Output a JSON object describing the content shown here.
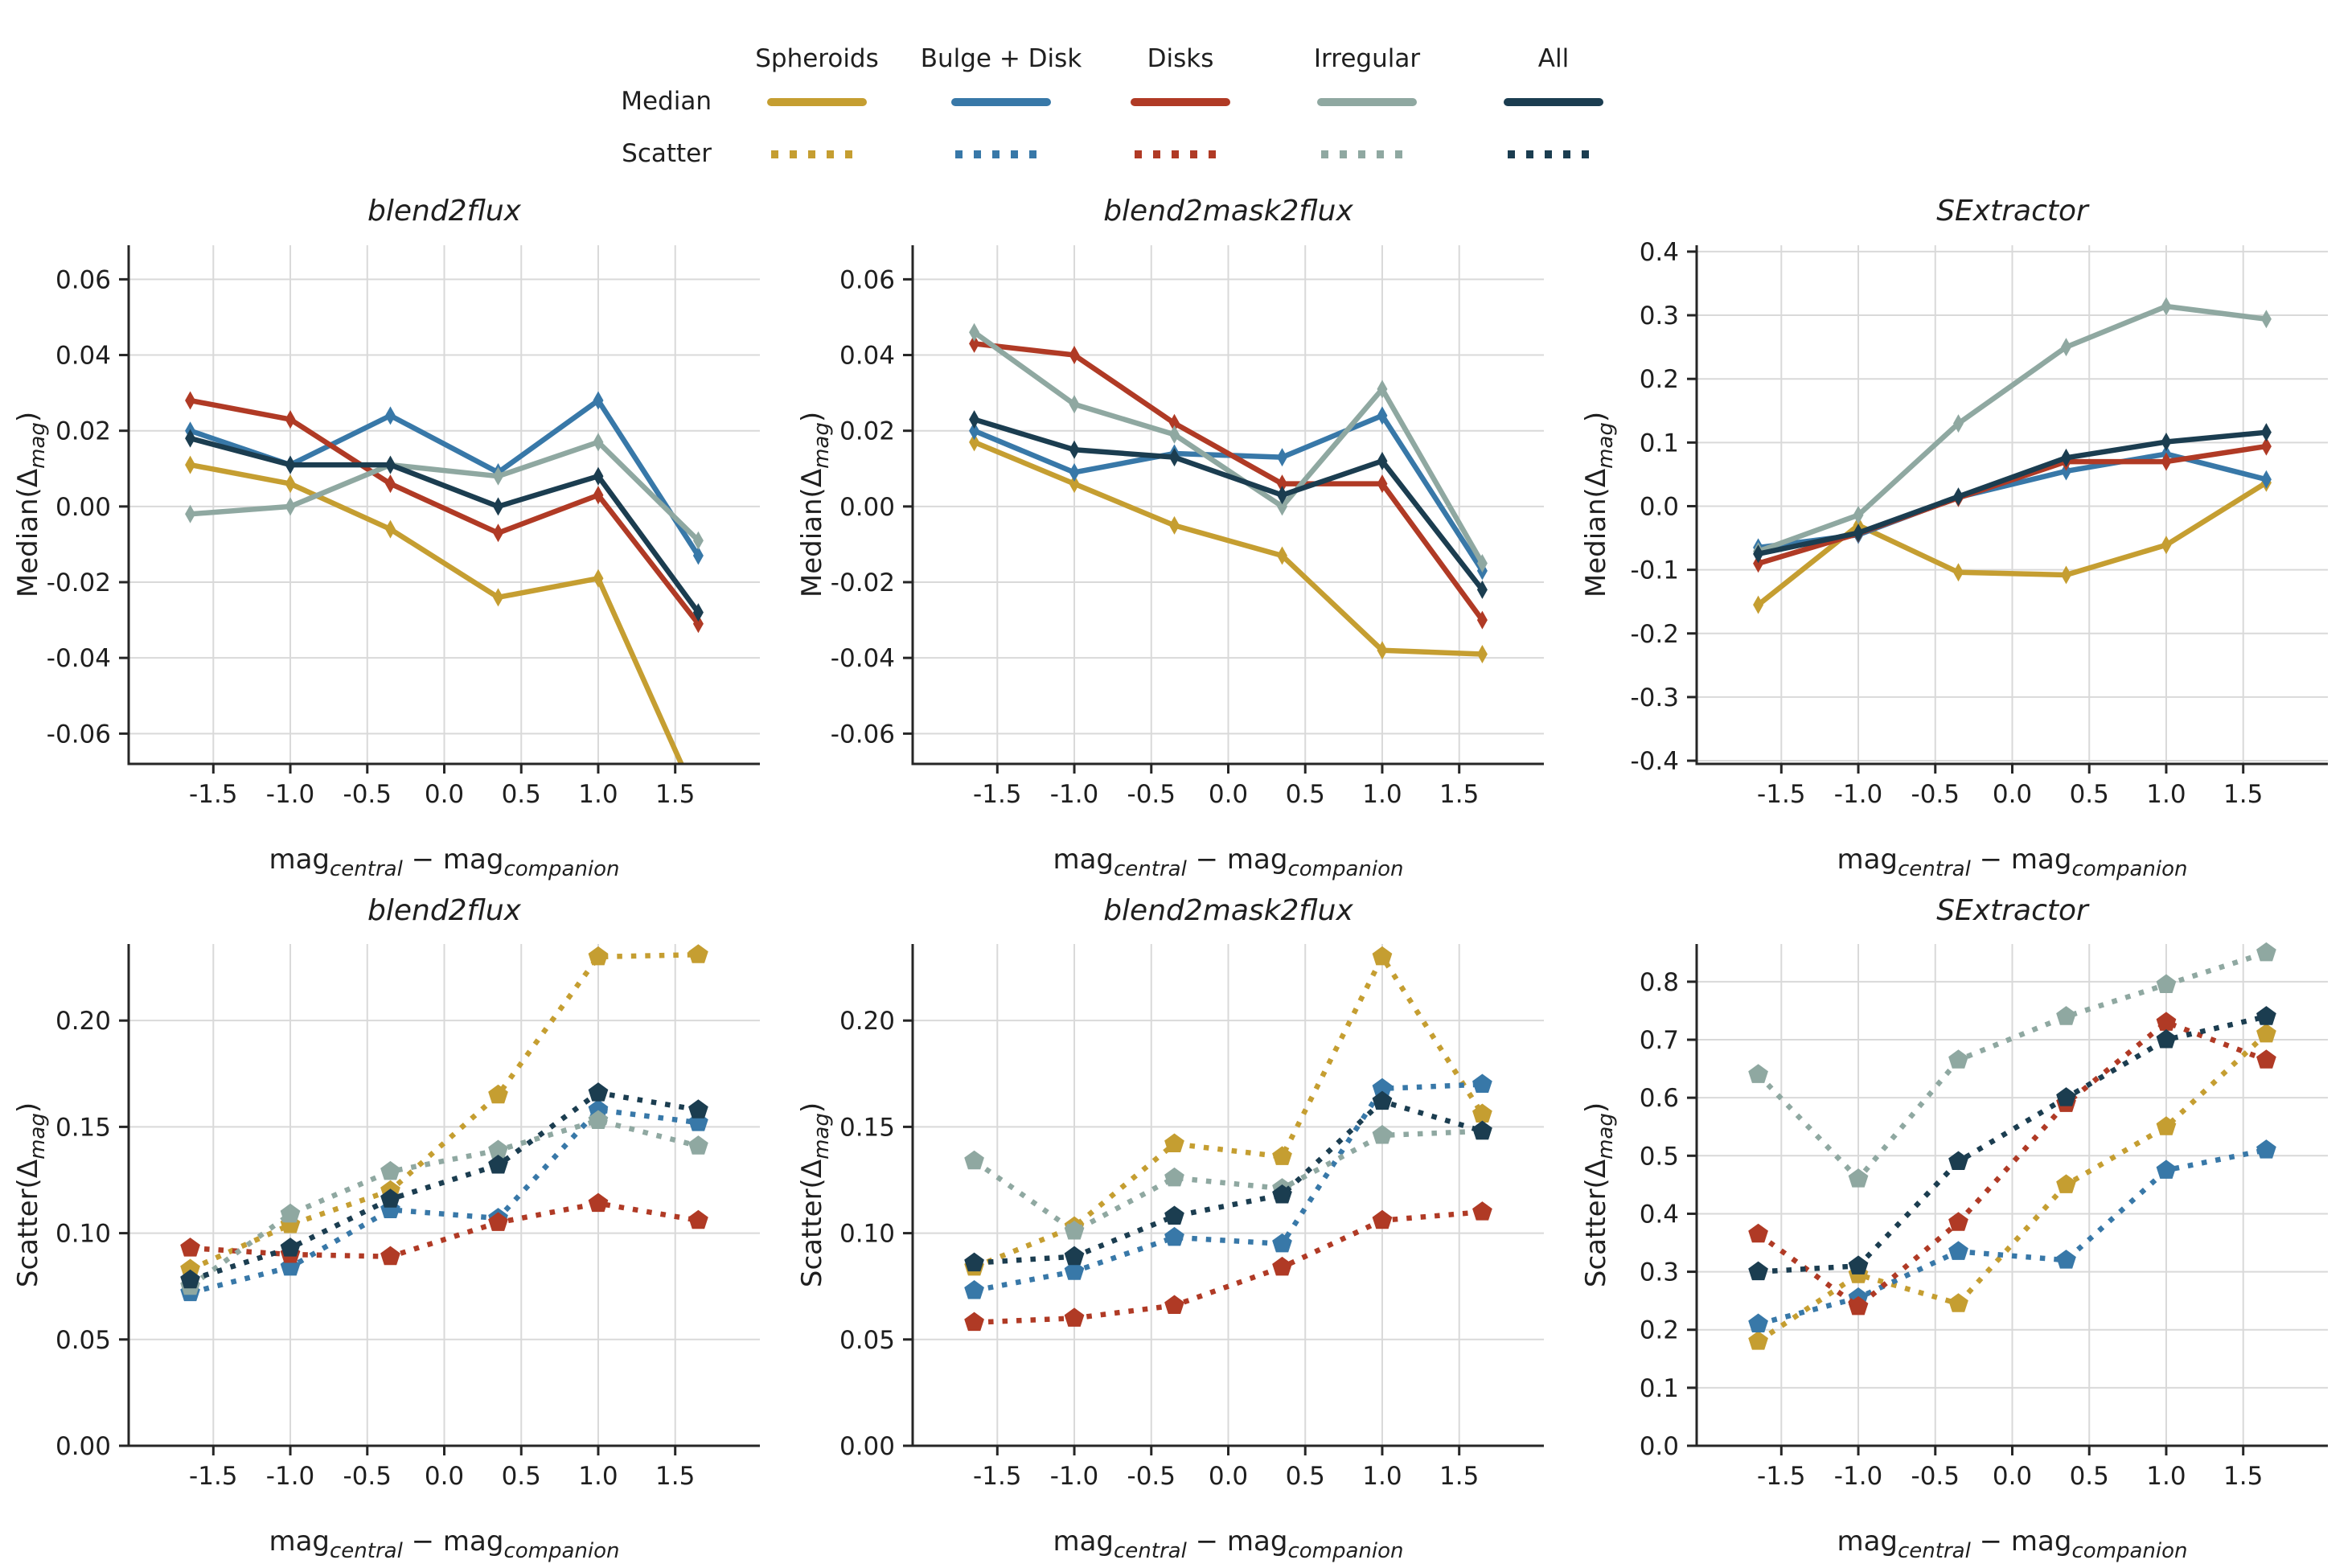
{
  "legend": {
    "median_label": "Median",
    "scatter_label": "Scatter",
    "categories": [
      {
        "label": "Spheroids",
        "color": "#C59E31"
      },
      {
        "label": "Bulge + Disk",
        "color": "#3878A8"
      },
      {
        "label": "Disks",
        "color": "#B03A25"
      },
      {
        "label": "Irregular",
        "color": "#8FA8A1"
      },
      {
        "label": "All",
        "color": "#1B3D50"
      }
    ]
  },
  "axis_labels": {
    "xlabel": {
      "pre": "mag",
      "sub1": "central",
      "mid": " − mag",
      "sub2": "companion"
    },
    "ylabel_median": {
      "pre": "Median(Δ",
      "sub": "mag",
      "post": ")"
    },
    "ylabel_scatter": {
      "pre": "Scatter(Δ",
      "sub": "mag",
      "post": ")"
    }
  },
  "style": {
    "grid_color": "#d9d9d9",
    "spine_color": "#262626",
    "background": "#ffffff"
  },
  "chart_data": [
    {
      "type": "line",
      "title": "blend2flux",
      "row": "median",
      "marker": "diamond",
      "dash": "solid",
      "x": [
        -1.65,
        -1.0,
        -0.35,
        0.35,
        1.0,
        1.65
      ],
      "xticks": [
        -1.5,
        -1.0,
        -0.5,
        0.0,
        0.5,
        1.0,
        1.5
      ],
      "xlim": [
        -2.05,
        2.05
      ],
      "ylim": [
        -0.068,
        0.069
      ],
      "yticks": [
        -0.06,
        -0.04,
        -0.02,
        0.0,
        0.02,
        0.04,
        0.06
      ],
      "ydecimals": 2,
      "series": [
        {
          "name": "Spheroids",
          "values": [
            0.011,
            0.006,
            -0.006,
            -0.024,
            -0.019,
            -0.078
          ]
        },
        {
          "name": "Bulge + Disk",
          "values": [
            0.02,
            0.011,
            0.024,
            0.009,
            0.028,
            -0.013
          ]
        },
        {
          "name": "Disks",
          "values": [
            0.028,
            0.023,
            0.006,
            -0.007,
            0.003,
            -0.031
          ]
        },
        {
          "name": "Irregular",
          "values": [
            -0.002,
            0.0,
            0.011,
            0.008,
            0.017,
            -0.009
          ]
        },
        {
          "name": "All",
          "values": [
            0.018,
            0.011,
            0.011,
            0.0,
            0.008,
            -0.028
          ]
        }
      ]
    },
    {
      "type": "line",
      "title": "blend2mask2flux",
      "row": "median",
      "marker": "diamond",
      "dash": "solid",
      "x": [
        -1.65,
        -1.0,
        -0.35,
        0.35,
        1.0,
        1.65
      ],
      "xticks": [
        -1.5,
        -1.0,
        -0.5,
        0.0,
        0.5,
        1.0,
        1.5
      ],
      "xlim": [
        -2.05,
        2.05
      ],
      "ylim": [
        -0.068,
        0.069
      ],
      "yticks": [
        -0.06,
        -0.04,
        -0.02,
        0.0,
        0.02,
        0.04,
        0.06
      ],
      "ydecimals": 2,
      "series": [
        {
          "name": "Spheroids",
          "values": [
            0.017,
            0.006,
            -0.005,
            -0.013,
            -0.038,
            -0.039
          ]
        },
        {
          "name": "Bulge + Disk",
          "values": [
            0.02,
            0.009,
            0.014,
            0.013,
            0.024,
            -0.017
          ]
        },
        {
          "name": "Disks",
          "values": [
            0.043,
            0.04,
            0.022,
            0.006,
            0.006,
            -0.03
          ]
        },
        {
          "name": "Irregular",
          "values": [
            0.046,
            0.027,
            0.019,
            0.0,
            0.031,
            -0.015
          ]
        },
        {
          "name": "All",
          "values": [
            0.023,
            0.015,
            0.013,
            0.003,
            0.012,
            -0.022
          ]
        }
      ]
    },
    {
      "type": "line",
      "title": "SExtractor",
      "row": "median",
      "marker": "diamond",
      "dash": "solid",
      "x": [
        -1.65,
        -1.0,
        -0.35,
        0.35,
        1.0,
        1.65
      ],
      "xticks": [
        -1.5,
        -1.0,
        -0.5,
        0.0,
        0.5,
        1.0,
        1.5
      ],
      "xlim": [
        -2.05,
        2.05
      ],
      "ylim": [
        -0.405,
        0.41
      ],
      "yticks": [
        -0.4,
        -0.3,
        -0.2,
        -0.1,
        0.0,
        0.1,
        0.2,
        0.3,
        0.4
      ],
      "ydecimals": 1,
      "series": [
        {
          "name": "Spheroids",
          "values": [
            -0.155,
            -0.03,
            -0.104,
            -0.108,
            -0.061,
            0.037
          ]
        },
        {
          "name": "Bulge + Disk",
          "values": [
            -0.065,
            -0.045,
            0.014,
            0.055,
            0.082,
            0.042
          ]
        },
        {
          "name": "Disks",
          "values": [
            -0.09,
            -0.043,
            0.013,
            0.07,
            0.07,
            0.094
          ]
        },
        {
          "name": "Irregular",
          "values": [
            -0.071,
            -0.014,
            0.13,
            0.25,
            0.314,
            0.294
          ]
        },
        {
          "name": "All",
          "values": [
            -0.075,
            -0.042,
            0.015,
            0.076,
            0.101,
            0.116
          ]
        }
      ]
    },
    {
      "type": "line",
      "title": "blend2flux",
      "row": "scatter",
      "marker": "pentagon",
      "dash": "dotted",
      "x": [
        -1.65,
        -1.0,
        -0.35,
        0.35,
        1.0,
        1.65
      ],
      "xticks": [
        -1.5,
        -1.0,
        -0.5,
        0.0,
        0.5,
        1.0,
        1.5
      ],
      "xlim": [
        -2.05,
        2.05
      ],
      "ylim": [
        0.0,
        0.236
      ],
      "yticks": [
        0.0,
        0.05,
        0.1,
        0.15,
        0.2
      ],
      "ydecimals": 2,
      "series": [
        {
          "name": "Spheroids",
          "values": [
            0.083,
            0.104,
            0.12,
            0.165,
            0.23,
            0.231
          ]
        },
        {
          "name": "Bulge + Disk",
          "values": [
            0.072,
            0.084,
            0.111,
            0.107,
            0.158,
            0.152
          ]
        },
        {
          "name": "Disks",
          "values": [
            0.093,
            0.09,
            0.089,
            0.105,
            0.114,
            0.106
          ]
        },
        {
          "name": "Irregular",
          "values": [
            0.075,
            0.109,
            0.129,
            0.139,
            0.153,
            0.141
          ]
        },
        {
          "name": "All",
          "values": [
            0.078,
            0.093,
            0.116,
            0.132,
            0.166,
            0.158
          ]
        }
      ]
    },
    {
      "type": "line",
      "title": "blend2mask2flux",
      "row": "scatter",
      "marker": "pentagon",
      "dash": "dotted",
      "x": [
        -1.65,
        -1.0,
        -0.35,
        0.35,
        1.0,
        1.65
      ],
      "xticks": [
        -1.5,
        -1.0,
        -0.5,
        0.0,
        0.5,
        1.0,
        1.5
      ],
      "xlim": [
        -2.05,
        2.05
      ],
      "ylim": [
        0.0,
        0.236
      ],
      "yticks": [
        0.0,
        0.05,
        0.1,
        0.15,
        0.2
      ],
      "ydecimals": 2,
      "series": [
        {
          "name": "Spheroids",
          "values": [
            0.084,
            0.103,
            0.142,
            0.136,
            0.23,
            0.156
          ]
        },
        {
          "name": "Bulge + Disk",
          "values": [
            0.073,
            0.082,
            0.098,
            0.095,
            0.168,
            0.17
          ]
        },
        {
          "name": "Disks",
          "values": [
            0.058,
            0.06,
            0.066,
            0.084,
            0.106,
            0.11
          ]
        },
        {
          "name": "Irregular",
          "values": [
            0.134,
            0.101,
            0.126,
            0.121,
            0.146,
            0.148
          ]
        },
        {
          "name": "All",
          "values": [
            0.086,
            0.089,
            0.108,
            0.118,
            0.162,
            0.148
          ]
        }
      ]
    },
    {
      "type": "line",
      "title": "SExtractor",
      "row": "scatter",
      "marker": "pentagon",
      "dash": "dotted",
      "x": [
        -1.65,
        -1.0,
        -0.35,
        0.35,
        1.0,
        1.65
      ],
      "xticks": [
        -1.5,
        -1.0,
        -0.5,
        0.0,
        0.5,
        1.0,
        1.5
      ],
      "xlim": [
        -2.05,
        2.05
      ],
      "ylim": [
        0.0,
        0.865
      ],
      "yticks": [
        0.0,
        0.1,
        0.2,
        0.3,
        0.4,
        0.5,
        0.6,
        0.7,
        0.8
      ],
      "ydecimals": 1,
      "series": [
        {
          "name": "Spheroids",
          "values": [
            0.18,
            0.295,
            0.245,
            0.45,
            0.55,
            0.71
          ]
        },
        {
          "name": "Bulge + Disk",
          "values": [
            0.21,
            0.255,
            0.335,
            0.32,
            0.475,
            0.51
          ]
        },
        {
          "name": "Disks",
          "values": [
            0.365,
            0.24,
            0.385,
            0.59,
            0.73,
            0.665
          ]
        },
        {
          "name": "Irregular",
          "values": [
            0.64,
            0.46,
            0.665,
            0.74,
            0.795,
            0.85
          ]
        },
        {
          "name": "All",
          "values": [
            0.3,
            0.31,
            0.49,
            0.6,
            0.7,
            0.74
          ]
        }
      ]
    }
  ]
}
